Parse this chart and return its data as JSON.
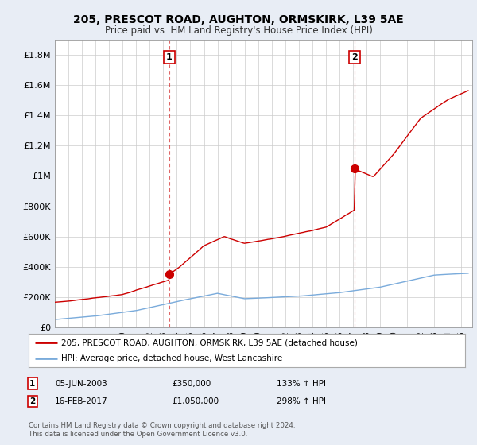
{
  "title": "205, PRESCOT ROAD, AUGHTON, ORMSKIRK, L39 5AE",
  "subtitle": "Price paid vs. HM Land Registry's House Price Index (HPI)",
  "ylim": [
    0,
    1900000
  ],
  "yticks": [
    0,
    200000,
    400000,
    600000,
    800000,
    1000000,
    1200000,
    1400000,
    1600000,
    1800000
  ],
  "ytick_labels": [
    "£0",
    "£200K",
    "£400K",
    "£600K",
    "£800K",
    "£1M",
    "£1.2M",
    "£1.4M",
    "£1.6M",
    "£1.8M"
  ],
  "xlim_start": 1995.0,
  "xlim_end": 2025.8,
  "sale1_x": 2003.43,
  "sale1_y": 350000,
  "sale2_x": 2017.12,
  "sale2_y": 1050000,
  "red_line_color": "#cc0000",
  "blue_line_color": "#7aabdb",
  "marker_color": "#cc0000",
  "dashed_color": "#cc0000",
  "bg_color": "#e8edf5",
  "plot_bg": "#ffffff",
  "legend_label1": "205, PRESCOT ROAD, AUGHTON, ORMSKIRK, L39 5AE (detached house)",
  "legend_label2": "HPI: Average price, detached house, West Lancashire",
  "note1_num": "1",
  "note1_date": "05-JUN-2003",
  "note1_price": "£350,000",
  "note1_hpi": "133% ↑ HPI",
  "note2_num": "2",
  "note2_date": "16-FEB-2017",
  "note2_price": "£1,050,000",
  "note2_hpi": "298% ↑ HPI",
  "footer": "Contains HM Land Registry data © Crown copyright and database right 2024.\nThis data is licensed under the Open Government Licence v3.0."
}
